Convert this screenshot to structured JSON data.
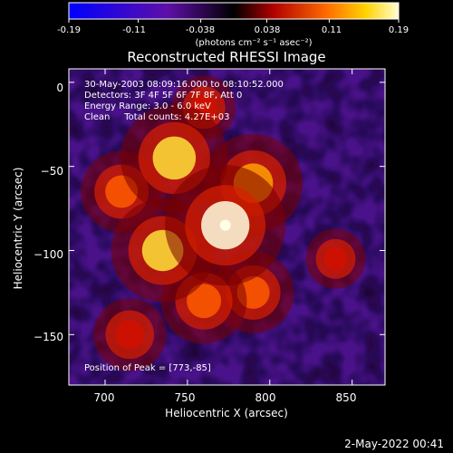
{
  "colorbar": {
    "ticks": [
      "-0.19",
      "-0.11",
      "-0.038",
      "0.038",
      "0.11",
      "0.19"
    ],
    "tick_values": [
      -0.19,
      -0.11,
      -0.038,
      0.038,
      0.11,
      0.19
    ],
    "range": [
      -0.19,
      0.19
    ],
    "unit_label": "(photons cm⁻² s⁻¹ asec⁻²)"
  },
  "chart_data": {
    "type": "heatmap",
    "title": "Reconstructed RHESSI Image",
    "xlabel": "Heliocentric X (arcsec)",
    "ylabel": "Heliocentric Y (arcsec)",
    "xlim": [
      678,
      870
    ],
    "ylim": [
      -180,
      8
    ],
    "x_ticks": [
      700,
      750,
      800,
      850
    ],
    "y_ticks": [
      0,
      -50,
      -100,
      -150
    ],
    "x_tick_labels": [
      "700",
      "750",
      "800",
      "850"
    ],
    "y_tick_labels": [
      "0",
      "−50",
      "−100",
      "−150"
    ],
    "annotations": [
      "30-May-2003 08:09:16.000 to 08:10:52.000",
      "Detectors: 3F 4F 5F 6F 7F 8F, Att 0",
      "Energy Range: 3.0 - 6.0 keV",
      "Clean     Total counts: 4.27E+03"
    ],
    "peak_label": "Position of Peak = [773,-85]",
    "peak": [
      773,
      -85
    ],
    "sources": [
      {
        "x": 773,
        "y": -85,
        "value": 0.19
      },
      {
        "x": 742,
        "y": -45,
        "value": 0.16
      },
      {
        "x": 735,
        "y": -100,
        "value": 0.15
      },
      {
        "x": 790,
        "y": -60,
        "value": 0.14
      },
      {
        "x": 710,
        "y": -65,
        "value": 0.1
      },
      {
        "x": 760,
        "y": -130,
        "value": 0.11
      },
      {
        "x": 715,
        "y": -150,
        "value": 0.08
      },
      {
        "x": 790,
        "y": -125,
        "value": 0.1
      },
      {
        "x": 760,
        "y": -15,
        "value": 0.06
      },
      {
        "x": 840,
        "y": -105,
        "value": 0.05
      }
    ]
  },
  "footer": {
    "date": "2-May-2022 00:41"
  }
}
